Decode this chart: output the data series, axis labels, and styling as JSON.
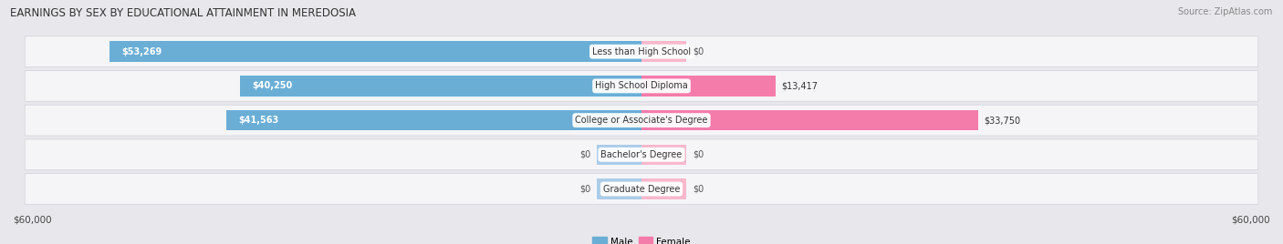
{
  "title": "EARNINGS BY SEX BY EDUCATIONAL ATTAINMENT IN MEREDOSIA",
  "source": "Source: ZipAtlas.com",
  "categories": [
    "Less than High School",
    "High School Diploma",
    "College or Associate's Degree",
    "Bachelor's Degree",
    "Graduate Degree"
  ],
  "male_values": [
    53269,
    40250,
    41563,
    0,
    0
  ],
  "female_values": [
    0,
    13417,
    33750,
    0,
    0
  ],
  "male_color": "#6aaed6",
  "female_color": "#f47caa",
  "male_color_zero": "#aacce8",
  "female_color_zero": "#f9b8cc",
  "zero_stub": 4500,
  "x_max": 60000,
  "xlabel_left": "$60,000",
  "xlabel_right": "$60,000",
  "legend_male": "Male",
  "legend_female": "Female",
  "bg_color": "#e8e8ec",
  "row_bg_color": "#f5f5f8",
  "row_border_color": "#d0d0d8",
  "title_fontsize": 8.5,
  "source_fontsize": 7,
  "label_fontsize": 7,
  "value_fontsize": 7,
  "tick_fontsize": 7.5
}
